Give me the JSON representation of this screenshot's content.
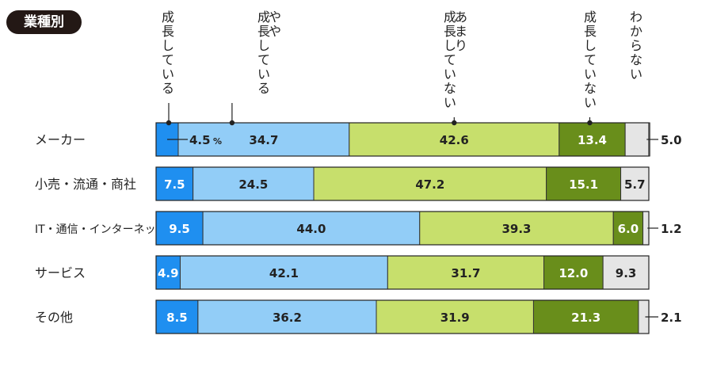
{
  "badge": "業種別",
  "chart_data": {
    "type": "bar",
    "stacked": true,
    "horizontal": true,
    "percent_suffix": "%",
    "segment_colors": [
      "#1f8ff0",
      "#92cdf7",
      "#c7df6c",
      "#698e1b",
      "#e5e5e5"
    ],
    "series": [
      {
        "name": "成長している",
        "label_lines": [
          "成長している"
        ]
      },
      {
        "name": "やや成長している",
        "label_lines": [
          "やや",
          "成長している"
        ]
      },
      {
        "name": "あまり成長していない",
        "label_lines": [
          "あまり",
          "成長していない"
        ]
      },
      {
        "name": "成長していない",
        "label_lines": [
          "成長していない"
        ]
      },
      {
        "name": "わからない",
        "label_lines": [
          "わからない"
        ]
      }
    ],
    "categories": [
      "メーカー",
      "小売・流通・商社",
      "IT・通信・インターネット",
      "サービス",
      "その他"
    ],
    "values": [
      [
        4.5,
        34.7,
        42.6,
        13.4,
        5.0
      ],
      [
        7.5,
        24.5,
        47.2,
        15.1,
        5.7
      ],
      [
        9.5,
        44.0,
        39.3,
        6.0,
        1.2
      ],
      [
        4.9,
        42.1,
        31.7,
        12.0,
        9.3
      ],
      [
        8.5,
        36.2,
        31.9,
        21.3,
        2.1
      ]
    ],
    "value_labels": [
      [
        "4.5",
        "34.7",
        "42.6",
        "13.4",
        "5.0"
      ],
      [
        "7.5",
        "24.5",
        "47.2",
        "15.1",
        "5.7"
      ],
      [
        "9.5",
        "44.0",
        "39.3",
        "6.0",
        "1.2"
      ],
      [
        "4.9",
        "42.1",
        "31.7",
        "12.0",
        "9.3"
      ],
      [
        "8.5",
        "36.2",
        "31.9",
        "21.3",
        "2.1"
      ]
    ]
  }
}
